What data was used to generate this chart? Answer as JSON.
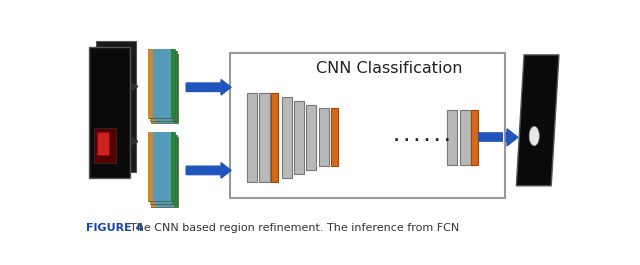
{
  "title": "CNN Classification",
  "caption_bold": "FIGURE 4",
  "caption_rest": "  The CNN based region refinement. The inference from FCN",
  "bg_color": "#ffffff",
  "box_border": "#999999",
  "box_fill": "#ffffff",
  "arrow_color": "#2255bb",
  "black_panel_color": "#0a0a0a",
  "orange_color": "#d4691a",
  "gray_layer_color": "#aaaaaa",
  "gray_layer_edge": "#777777",
  "dots_color": "#222222",
  "caption_color": "#1a44aa",
  "caption_text_color": "#333333"
}
